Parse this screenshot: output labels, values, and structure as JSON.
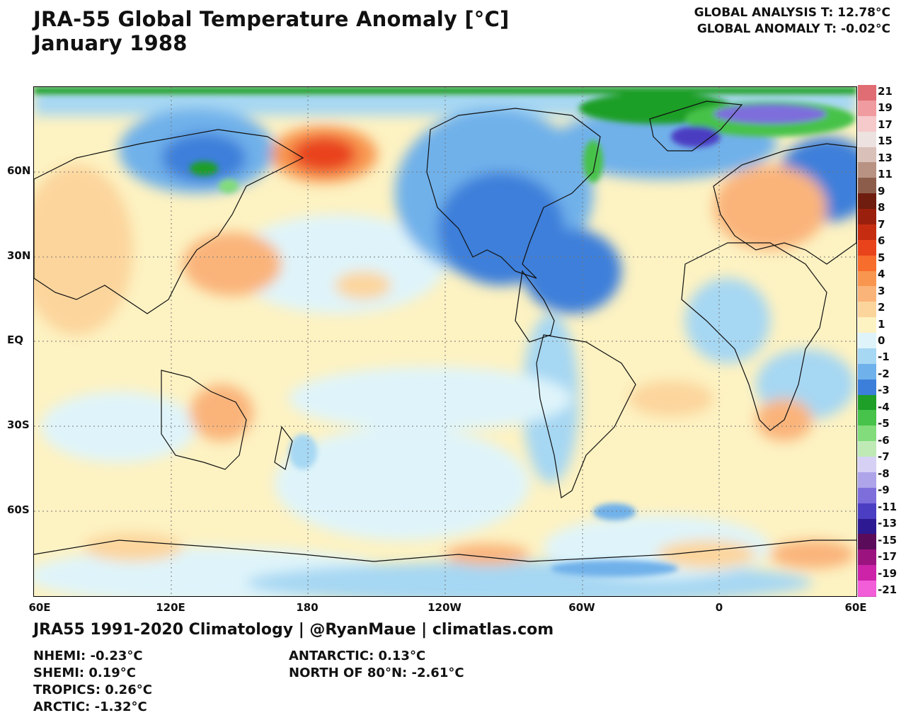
{
  "title": {
    "line1": "JRA-55 Global Temperature Anomaly [°C]",
    "line2": "January 1988"
  },
  "global": {
    "analysis": "GLOBAL ANALYSIS T: 12.78°C",
    "anomaly": "GLOBAL ANOMALY T: -0.02°C"
  },
  "latitude_labels": [
    "60N",
    "30N",
    "EQ",
    "30S",
    "60S"
  ],
  "longitude_labels": [
    "60E",
    "120E",
    "180",
    "120W",
    "60W",
    "0",
    "60E"
  ],
  "colorbar": {
    "labels": [
      "21",
      "19",
      "17",
      "15",
      "13",
      "11",
      "9",
      "8",
      "7",
      "6",
      "5",
      "4",
      "3",
      "2",
      "1",
      "0",
      "-1",
      "-2",
      "-3",
      "-4",
      "-5",
      "-6",
      "-7",
      "-8",
      "-9",
      "-11",
      "-13",
      "-15",
      "-17",
      "-19",
      "-21"
    ],
    "colors": [
      "#e06d73",
      "#ef9ba0",
      "#f6c9cb",
      "#ece2df",
      "#d9c0b8",
      "#b89384",
      "#8d5d4c",
      "#6e1d0f",
      "#9a1f0d",
      "#c62d10",
      "#e9431b",
      "#f76d2c",
      "#f8964f",
      "#fab47a",
      "#fcd59c",
      "#fdf2c2",
      "#dff4fa",
      "#a6d7f3",
      "#6fb1ea",
      "#3c7fda",
      "#1d9f28",
      "#47c24a",
      "#82dc7b",
      "#bfeab6",
      "#d6d1f4",
      "#ada4ea",
      "#7d6edc",
      "#4b3ec2",
      "#2d1a93",
      "#5a0c5a",
      "#9a137f",
      "#cc23a9",
      "#f25dd8"
    ]
  },
  "credit": "JRA55 1991-2020 Climatology | @RyanMaue | climatlas.com",
  "stats_left": [
    "NHEMI: -0.23°C",
    "SHEMI: 0.19°C",
    "TROPICS: 0.26°C",
    "ARCTIC: -1.32°C"
  ],
  "stats_right": [
    "ANTARCTIC: 0.13°C",
    "NORTH OF 80°N: -2.61°C"
  ]
}
